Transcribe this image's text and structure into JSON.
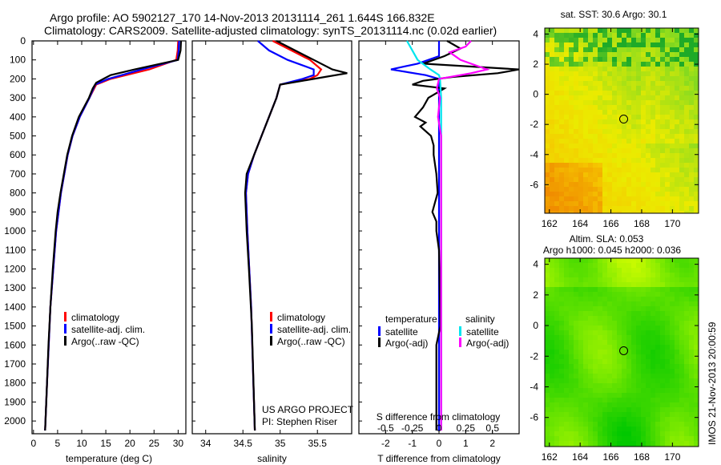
{
  "title": {
    "line1": "Argo profile: AO 5902127_170 14-Nov-2013 20131114_261 1.644S 166.832E",
    "line2": "Climatology: CARS2009. Satellite-adjusted climatology: synTS_20131114.nc (0.02d earlier)"
  },
  "colors": {
    "climatology": "#ff0000",
    "satellite": "#0000ff",
    "argo": "#000000",
    "sat_s": "#00e5ee",
    "argo_s": "#ff00ff"
  },
  "chart_data": [
    {
      "type": "line",
      "name": "temperature",
      "xlabel": "temperature (deg C)",
      "ylabel": "depth",
      "xlim": [
        -0.3,
        31.6
      ],
      "ylim": [
        2067,
        0
      ],
      "xticks": [
        0,
        5,
        10,
        15,
        20,
        25,
        30
      ],
      "yticks": [
        0,
        100,
        200,
        300,
        400,
        500,
        600,
        700,
        800,
        900,
        1000,
        1100,
        1200,
        1300,
        1400,
        1500,
        1600,
        1700,
        1800,
        1900,
        2000
      ],
      "legend": [
        "climatology",
        "satellite-adj. clim.",
        "Argo(..raw -QC)"
      ],
      "series": [
        {
          "name": "climatology",
          "color": "#ff0000",
          "depth": [
            0,
            50,
            100,
            150,
            200,
            230,
            300,
            400,
            500,
            600,
            800,
            1000,
            1400,
            1800,
            2050
          ],
          "values": [
            30.0,
            29.9,
            29.6,
            24,
            16,
            13,
            11.6,
            9.6,
            8.1,
            7.1,
            5.7,
            4.7,
            3.5,
            2.8,
            2.4
          ]
        },
        {
          "name": "satellite-adj. clim.",
          "color": "#0000ff",
          "depth": [
            0,
            50,
            100,
            150,
            200,
            230,
            300,
            400,
            500,
            600,
            800,
            1000,
            1400,
            1800,
            2050
          ],
          "values": [
            30.2,
            30.1,
            29.9,
            22.5,
            15.5,
            12.8,
            11.6,
            9.6,
            8.1,
            7.1,
            5.7,
            4.7,
            3.5,
            2.8,
            2.4
          ]
        },
        {
          "name": "Argo(..raw -QC)",
          "color": "#000000",
          "depth": [
            0,
            50,
            100,
            150,
            180,
            200,
            220,
            250,
            300,
            400,
            500,
            600,
            700,
            800,
            900,
            1000,
            1200,
            1400,
            1600,
            1800,
            2050
          ],
          "values": [
            30.6,
            30.5,
            30.0,
            21,
            16,
            14.5,
            13,
            12.3,
            11.5,
            9.4,
            8.0,
            7.0,
            6.3,
            5.6,
            5.0,
            4.6,
            4.0,
            3.5,
            3.1,
            2.8,
            2.4
          ]
        }
      ]
    },
    {
      "type": "line",
      "name": "salinity",
      "xlabel": "salinity",
      "xlim": [
        33.82,
        35.96
      ],
      "ylim": [
        2067,
        0
      ],
      "xticks": [
        34,
        34.5,
        35,
        35.5,
        36
      ],
      "legend": [
        "climatology",
        "satellite-adj. clim.",
        "Argo(..raw -QC)"
      ],
      "annotation": [
        "US ARGO PROJECT",
        "PI: Stephen Riser"
      ],
      "series": [
        {
          "name": "climatology",
          "color": "#ff0000",
          "depth": [
            0,
            50,
            100,
            150,
            180,
            200,
            230,
            300,
            400,
            500,
            600,
            700,
            800,
            1000,
            1400,
            1800,
            2050
          ],
          "values": [
            34.9,
            35.15,
            35.4,
            35.55,
            35.5,
            35.4,
            35.0,
            34.95,
            34.85,
            34.75,
            34.65,
            34.57,
            34.54,
            34.56,
            34.61,
            34.64,
            34.66
          ]
        },
        {
          "name": "satellite-adj. clim.",
          "color": "#0000ff",
          "depth": [
            0,
            50,
            100,
            150,
            180,
            200,
            230,
            300,
            400,
            500,
            600,
            700,
            800,
            1000,
            1400,
            1800,
            2050
          ],
          "values": [
            34.7,
            34.85,
            35.1,
            35.45,
            35.45,
            35.3,
            35.0,
            34.95,
            34.85,
            34.75,
            34.65,
            34.57,
            34.54,
            34.56,
            34.61,
            34.64,
            34.66
          ]
        },
        {
          "name": "Argo(..raw -QC)",
          "color": "#000000",
          "depth": [
            0,
            50,
            100,
            150,
            170,
            190,
            210,
            230,
            300,
            400,
            500,
            600,
            700,
            800,
            1000,
            1200,
            1500,
            2050
          ],
          "values": [
            34.95,
            35.2,
            35.45,
            35.7,
            35.9,
            35.6,
            35.3,
            35.0,
            34.95,
            34.85,
            34.75,
            34.65,
            34.55,
            34.53,
            34.55,
            34.58,
            34.62,
            34.66
          ]
        }
      ]
    },
    {
      "type": "line",
      "name": "difference",
      "xlabel": "T difference from climatology",
      "x2label": "S difference from climatology",
      "xlim": [
        -3,
        3
      ],
      "x2lim": [
        -0.75,
        0.75
      ],
      "ylim": [
        2067,
        0
      ],
      "xticks": [
        -2,
        -1,
        0,
        1,
        2
      ],
      "x2ticks": [
        "-0.5",
        "-0.25",
        "0",
        "0.25",
        "0.5"
      ],
      "legend_headers": [
        "temperature",
        "salinity"
      ],
      "legend": [
        "satellite",
        "Argo(-adj)",
        "satellite",
        "Argo(-adj)"
      ],
      "series": [
        {
          "name": "T satellite",
          "color": "#0000ff",
          "depth": [
            0,
            80,
            120,
            150,
            180,
            200,
            250,
            2050
          ],
          "values": [
            0,
            0,
            -0.8,
            -1.8,
            -0.5,
            0,
            0,
            0
          ]
        },
        {
          "name": "T Argo(-adj)",
          "color": "#000000",
          "depth": [
            0,
            40,
            80,
            120,
            150,
            170,
            190,
            210,
            230,
            250,
            300,
            350,
            400,
            430,
            450,
            500,
            550,
            600,
            700,
            800,
            900,
            950,
            1000,
            1100,
            1500,
            1600,
            2050
          ],
          "values": [
            0.3,
            0.8,
            0.2,
            -0.6,
            3.0,
            2.2,
            0.5,
            -0.6,
            -1.0,
            0.2,
            -0.4,
            -0.6,
            -0.9,
            -0.5,
            -0.7,
            -0.3,
            -0.2,
            -0.2,
            -0.1,
            -0.05,
            -0.25,
            -0.1,
            -0.1,
            0,
            0.05,
            -0.1,
            -0.1
          ]
        },
        {
          "name": "S satellite",
          "color": "#00e5ee",
          "depth": [
            0,
            50,
            100,
            150,
            180,
            200,
            300,
            2050
          ],
          "values": [
            -0.3,
            -0.25,
            -0.2,
            -0.08,
            0,
            0.01,
            0.02,
            0.02
          ]
        },
        {
          "name": "S Argo(-adj)",
          "color": "#ff00ff",
          "depth": [
            0,
            30,
            60,
            100,
            150,
            170,
            200,
            250,
            300,
            400,
            500,
            2050
          ],
          "values": [
            0.3,
            0.25,
            0.1,
            0.2,
            0.45,
            0.3,
            0.0,
            -0.02,
            0.01,
            -0.01,
            0.02,
            0.02
          ]
        }
      ]
    },
    {
      "type": "heatmap",
      "name": "sst-map",
      "title": "sat. SST: 30.6  Argo: 30.1",
      "xlim": [
        161.7,
        171.7
      ],
      "ylim": [
        -7.9,
        4.4
      ],
      "xticks": [
        162,
        164,
        166,
        168,
        170
      ],
      "yticks": [
        4,
        2,
        0,
        -2,
        -4,
        -6
      ],
      "argo_position": [
        166.832,
        -1.644
      ]
    },
    {
      "type": "heatmap",
      "name": "sla-map",
      "title": "Altim. SLA: 0.053",
      "subtitle": "Argo h1000: 0.045 h2000: 0.036",
      "xlim": [
        161.7,
        171.7
      ],
      "ylim": [
        -7.9,
        4.4
      ],
      "xticks": [
        162,
        164,
        166,
        168,
        170
      ],
      "yticks": [
        4,
        2,
        0,
        -2,
        -4,
        -6
      ],
      "argo_position": [
        166.832,
        -1.644
      ]
    }
  ],
  "credit": "IMOS 21-Nov-2013 20:00:59"
}
